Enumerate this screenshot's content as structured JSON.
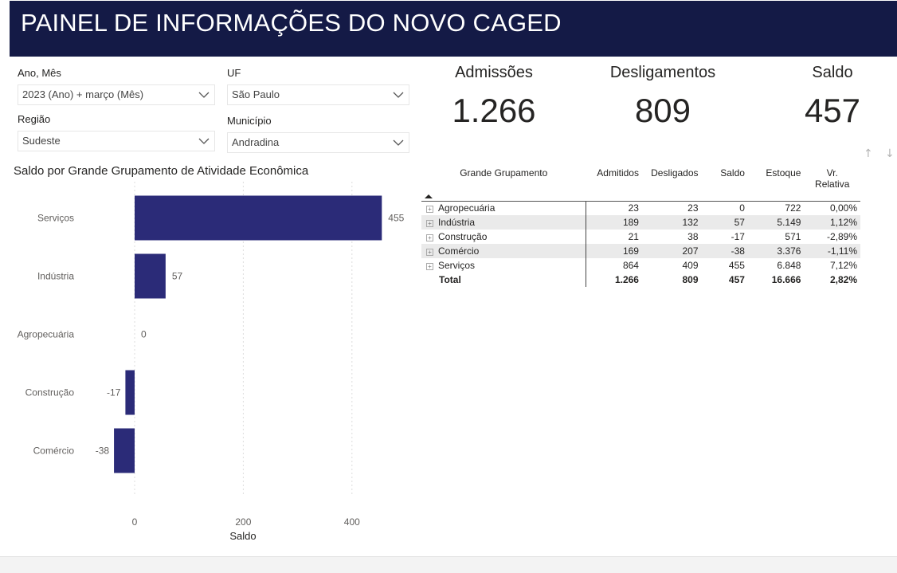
{
  "header": {
    "title": "PAINEL DE INFORMAÇÕES DO NOVO CAGED"
  },
  "filters": {
    "ano_mes": {
      "label": "Ano, Mês",
      "value": "2023 (Ano) + março (Mês)"
    },
    "uf": {
      "label": "UF",
      "value": "São Paulo"
    },
    "regiao": {
      "label": "Região",
      "value": "Sudeste"
    },
    "municipio": {
      "label": "Município",
      "value": "Andradina"
    }
  },
  "kpis": {
    "admissoes": {
      "label": "Admissões",
      "value": "1.266"
    },
    "desligamentos": {
      "label": "Desligamentos",
      "value": "809"
    },
    "saldo": {
      "label": "Saldo",
      "value": "457"
    }
  },
  "table": {
    "headers": {
      "grupo": "Grande Grupamento",
      "admitidos": "Admitidos",
      "desligados": "Desligados",
      "saldo": "Saldo",
      "estoque": "Estoque",
      "vr_relativa_1": "Vr.",
      "vr_relativa_2": "Relativa"
    },
    "rows": [
      {
        "name": "Agropecuária",
        "admitidos": "23",
        "desligados": "23",
        "saldo": "0",
        "estoque": "722",
        "vr": "0,00%"
      },
      {
        "name": "Indústria",
        "admitidos": "189",
        "desligados": "132",
        "saldo": "57",
        "estoque": "5.149",
        "vr": "1,12%"
      },
      {
        "name": "Construção",
        "admitidos": "21",
        "desligados": "38",
        "saldo": "-17",
        "estoque": "571",
        "vr": "-2,89%"
      },
      {
        "name": "Comércio",
        "admitidos": "169",
        "desligados": "207",
        "saldo": "-38",
        "estoque": "3.376",
        "vr": "-1,11%"
      },
      {
        "name": "Serviços",
        "admitidos": "864",
        "desligados": "409",
        "saldo": "455",
        "estoque": "6.848",
        "vr": "7,12%"
      }
    ],
    "total": {
      "name": "Total",
      "admitidos": "1.266",
      "desligados": "809",
      "saldo": "457",
      "estoque": "16.666",
      "vr": "2,82%"
    }
  },
  "chart_data": {
    "type": "bar",
    "orientation": "horizontal",
    "title": "Saldo por Grande Grupamento de Atividade Econômica",
    "categories": [
      "Serviços",
      "Indústria",
      "Agropecuária",
      "Construção",
      "Comércio"
    ],
    "values": [
      455,
      57,
      0,
      -17,
      -38
    ],
    "xlabel": "Saldo",
    "xticks": [
      0,
      200,
      400
    ],
    "xlim": [
      -38,
      455
    ],
    "grid": true,
    "bar_color": "#2b2b78"
  },
  "colors": {
    "header_bg": "#141a46",
    "bar": "#2b2b78"
  }
}
